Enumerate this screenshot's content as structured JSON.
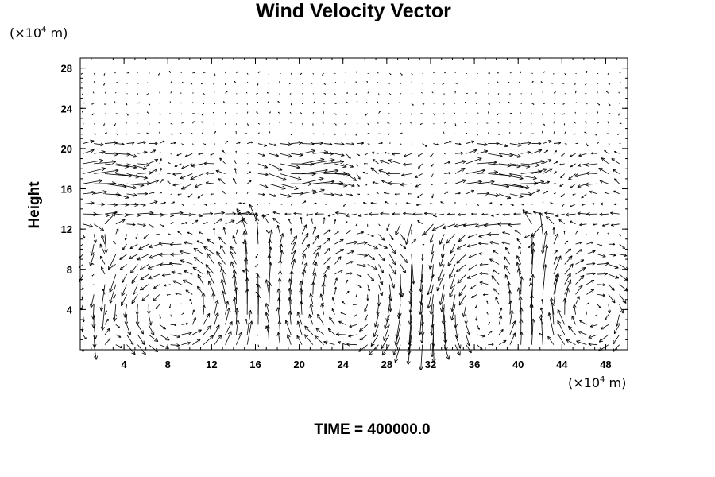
{
  "chart_data": {
    "type": "vector-field",
    "title": "Wind Velocity Vector",
    "ylabel": "Height",
    "xunit": {
      "prefix": "(×10",
      "exp": "4",
      "suffix": " m)"
    },
    "yunit": {
      "prefix": "(×10",
      "exp": "4",
      "suffix": " m)"
    },
    "xlim": [
      0,
      50
    ],
    "ylim": [
      0,
      29
    ],
    "xticks": [
      4,
      8,
      12,
      16,
      20,
      24,
      28,
      32,
      36,
      40,
      44,
      48
    ],
    "yticks": [
      4,
      8,
      12,
      16,
      20,
      24,
      28
    ],
    "footer": "TIME = 400000.0",
    "grid_x": {
      "start": 0.25,
      "step": 1.0,
      "count": 50
    },
    "grid_y": {
      "start": 0.5,
      "step": 1.0,
      "count": 28
    },
    "eddies": [
      {
        "cx": 9,
        "cy": 4,
        "r": 5,
        "spin": 1
      },
      {
        "cx": 26,
        "cy": 5,
        "r": 6,
        "spin": -1
      },
      {
        "cx": 36,
        "cy": 4,
        "r": 5,
        "spin": 1
      },
      {
        "cx": 46,
        "cy": 4,
        "r": 4,
        "spin": -1
      }
    ],
    "shear_layer": {
      "center_y": 17.5,
      "width": 2.5
    },
    "color": "#000000"
  }
}
